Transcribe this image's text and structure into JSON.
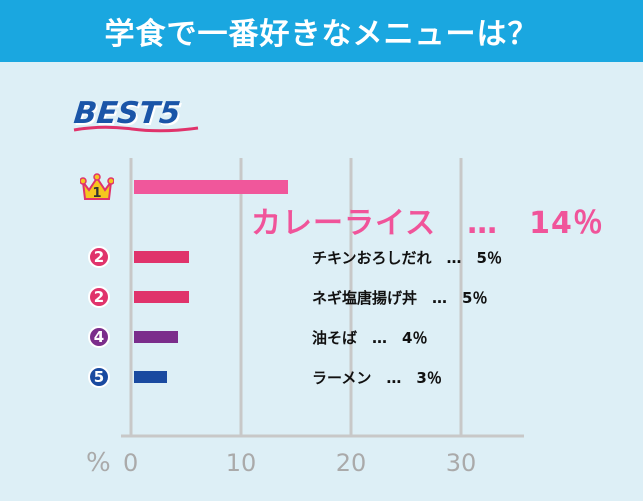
{
  "header": {
    "title": "学食で一番好きなメニューは？"
  },
  "badge": {
    "text": "BEST5"
  },
  "axis": {
    "unit": "%"
  },
  "chart_data": {
    "type": "bar",
    "orientation": "horizontal",
    "title": "学食で一番好きなメニューは？",
    "xlim": [
      0,
      35
    ],
    "xticks": [
      0,
      10,
      20,
      30
    ],
    "xlabel": "%",
    "grid": true,
    "colors": [
      "#f0579b",
      "#e0336b",
      "#e0336b",
      "#7b2d8b",
      "#1a4aa0"
    ],
    "items": [
      {
        "rank": "1",
        "category": "カレーライス",
        "value": 14,
        "label": "カレーライス　…　14％"
      },
      {
        "rank": "2",
        "category": "チキンおろしだれ",
        "value": 5,
        "label": "チキンおろしだれ　…　5％"
      },
      {
        "rank": "2",
        "category": "ネギ塩唐揚げ丼",
        "value": 5,
        "label": "ネギ塩唐揚げ丼　…　5％"
      },
      {
        "rank": "4",
        "category": "油そば",
        "value": 4,
        "label": "油そば　…　4％"
      },
      {
        "rank": "5",
        "category": "ラーメン",
        "value": 3,
        "label": "ラーメン　…　3％"
      }
    ]
  }
}
